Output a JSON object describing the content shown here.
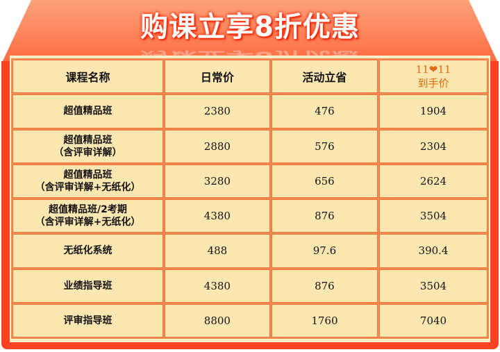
{
  "banner": {
    "title": "购课立享8折优惠"
  },
  "table": {
    "headers": [
      "课程名称",
      "日常价",
      "活动立省"
    ],
    "special_header": {
      "line1_left": "11",
      "icon": "heart-icon",
      "line1_right": "11",
      "line2": "到手价"
    },
    "rows": [
      {
        "name": [
          "超值精品班"
        ],
        "regular": "2380",
        "save": "476",
        "final": "1904"
      },
      {
        "name": [
          "超值精品班",
          "（含评审详解）"
        ],
        "regular": "2880",
        "save": "576",
        "final": "2304"
      },
      {
        "name": [
          "超值精品班",
          "（含评审详解+无纸化）"
        ],
        "regular": "3280",
        "save": "656",
        "final": "2624"
      },
      {
        "name": [
          "超值精品班/2考期",
          "（含评审详解+无纸化）"
        ],
        "regular": "4380",
        "save": "876",
        "final": "3504"
      },
      {
        "name": [
          "无纸化系统"
        ],
        "regular": "488",
        "save": "97.6",
        "final": "390.4"
      },
      {
        "name": [
          "业绩指导班"
        ],
        "regular": "4380",
        "save": "876",
        "final": "3504"
      },
      {
        "name": [
          "评审指导班"
        ],
        "regular": "8800",
        "save": "1760",
        "final": "7040"
      }
    ]
  },
  "colors": {
    "frame": "#ff4222",
    "cell": "#fde7b0",
    "border": "#f07840",
    "accent": "#e06a10"
  }
}
